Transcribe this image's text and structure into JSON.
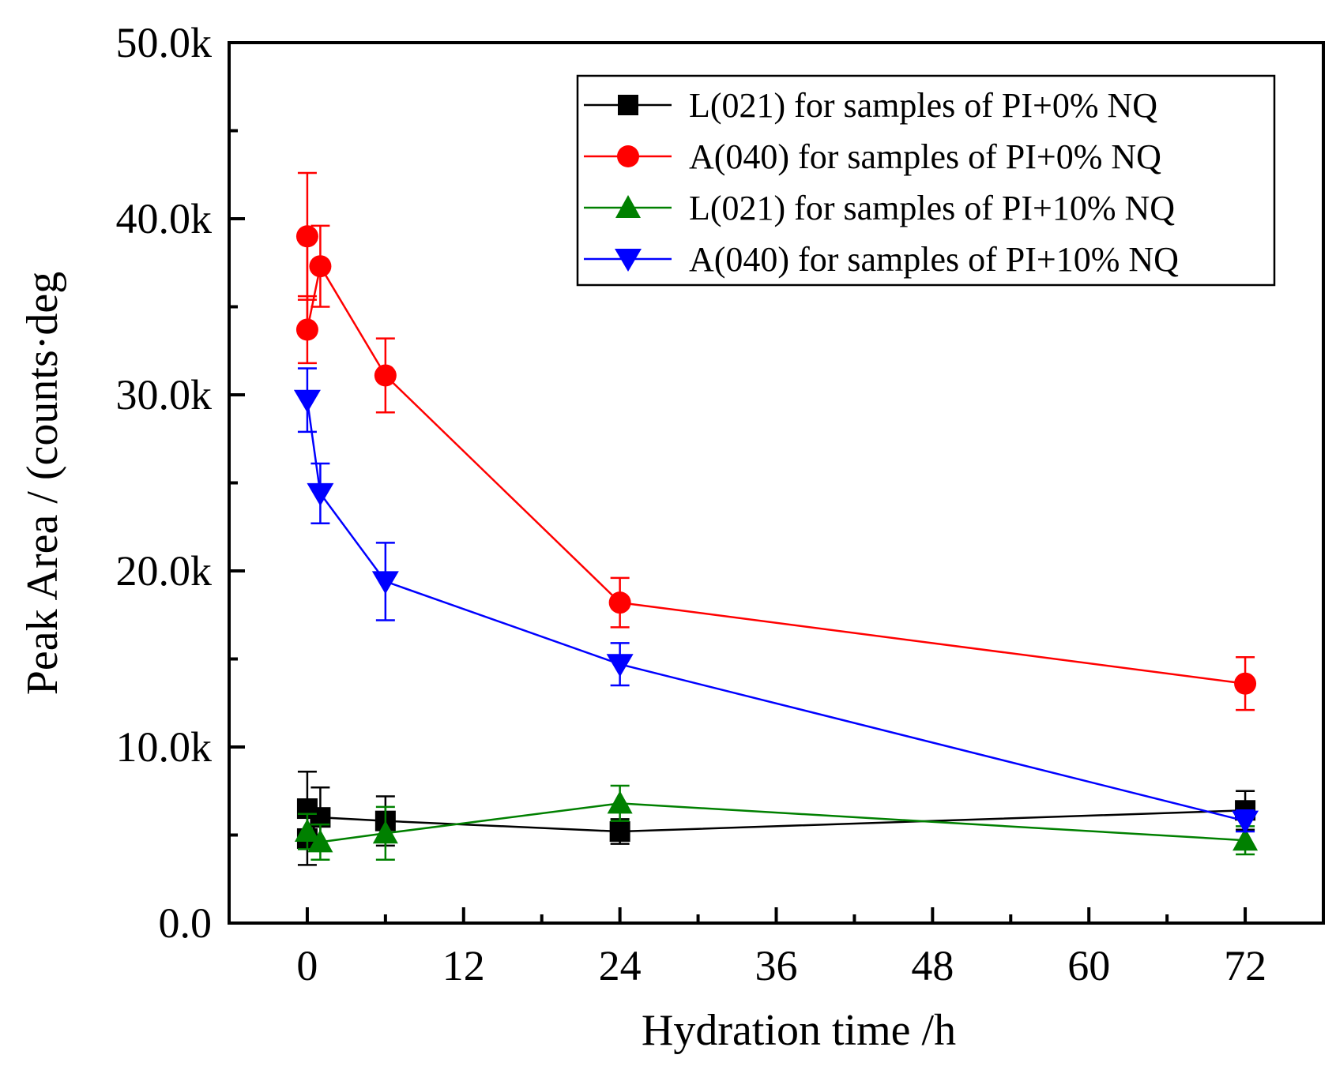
{
  "chart_data": {
    "type": "line",
    "title": "",
    "xlabel": "Hydration time /h",
    "ylabel": "Peak Area / (counts·deg",
    "xlim": [
      -6,
      78
    ],
    "ylim": [
      0,
      50000
    ],
    "x_ticks": [
      0,
      12,
      24,
      36,
      48,
      60,
      72
    ],
    "x_tick_labels": [
      "0",
      "12",
      "24",
      "36",
      "48",
      "60",
      "72"
    ],
    "y_ticks": [
      0,
      10000,
      20000,
      30000,
      40000,
      50000
    ],
    "y_tick_labels": [
      "0.0",
      "10.0k",
      "20.0k",
      "30.0k",
      "40.0k",
      "50.0k"
    ],
    "grid": false,
    "legend_position": "top-right",
    "series": [
      {
        "name": "L(021) for samples of PI+0% NQ",
        "color": "#000000",
        "marker": "square",
        "x": [
          0,
          0,
          1,
          6,
          24,
          72
        ],
        "y": [
          6500,
          4800,
          6000,
          5800,
          5200,
          6400
        ],
        "err": [
          2100,
          1500,
          1700,
          1400,
          700,
          1100
        ]
      },
      {
        "name": "A(040) for samples of PI+0% NQ",
        "color": "#ff0000",
        "marker": "circle",
        "x": [
          0,
          0,
          1,
          6,
          24,
          72
        ],
        "y": [
          39000,
          33700,
          37300,
          31100,
          18200,
          13600
        ],
        "err": [
          3600,
          1900,
          2300,
          2100,
          1400,
          1500
        ]
      },
      {
        "name": "L(021) for samples of PI+10% NQ",
        "color": "#008000",
        "marker": "triangle-up",
        "x": [
          0,
          1,
          6,
          24,
          72
        ],
        "y": [
          5200,
          4600,
          5100,
          6800,
          4700
        ],
        "err": [
          1000,
          1000,
          1500,
          1000,
          800
        ]
      },
      {
        "name": "A(040) for samples of PI+10% NQ",
        "color": "#0000ff",
        "marker": "triangle-down",
        "x": [
          0,
          1,
          6,
          24,
          72
        ],
        "y": [
          29700,
          24400,
          19400,
          14700,
          5800
        ],
        "err": [
          1800,
          1700,
          2200,
          1200,
          600
        ]
      }
    ]
  }
}
